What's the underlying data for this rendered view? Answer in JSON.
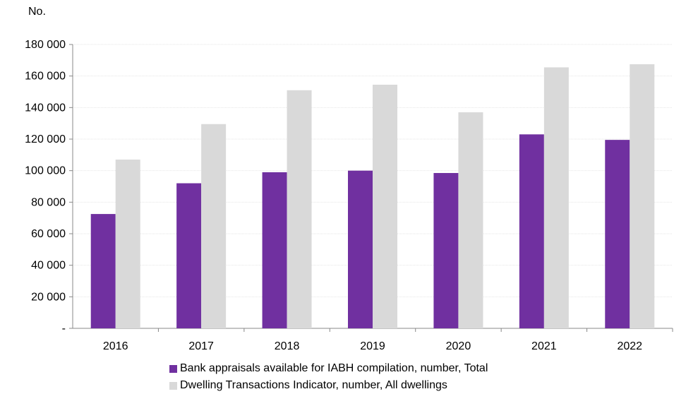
{
  "chart_data": {
    "type": "bar",
    "ylabel": "No.",
    "categories": [
      "2016",
      "2017",
      "2018",
      "2019",
      "2020",
      "2021",
      "2022"
    ],
    "series": [
      {
        "name": "Bank appraisals available for IABH compilation, number, Total",
        "color": "#7030a0",
        "values": [
          72500,
          92000,
          99000,
          100000,
          98500,
          123000,
          119500
        ]
      },
      {
        "name": "Dwelling Transactions Indicator, number, All dwellings",
        "color": "#d9d9d9",
        "values": [
          107000,
          129500,
          151000,
          154500,
          137000,
          165500,
          167500
        ]
      }
    ],
    "ylim": [
      0,
      180000
    ],
    "yticks": [
      0,
      20000,
      40000,
      60000,
      80000,
      100000,
      120000,
      140000,
      160000,
      180000
    ],
    "ytick_labels": [
      "-",
      "20 000",
      "40 000",
      "60 000",
      "80 000",
      "100 000",
      "120 000",
      "140 000",
      "160 000",
      "180 000"
    ],
    "grid": true,
    "legend_position": "bottom"
  }
}
